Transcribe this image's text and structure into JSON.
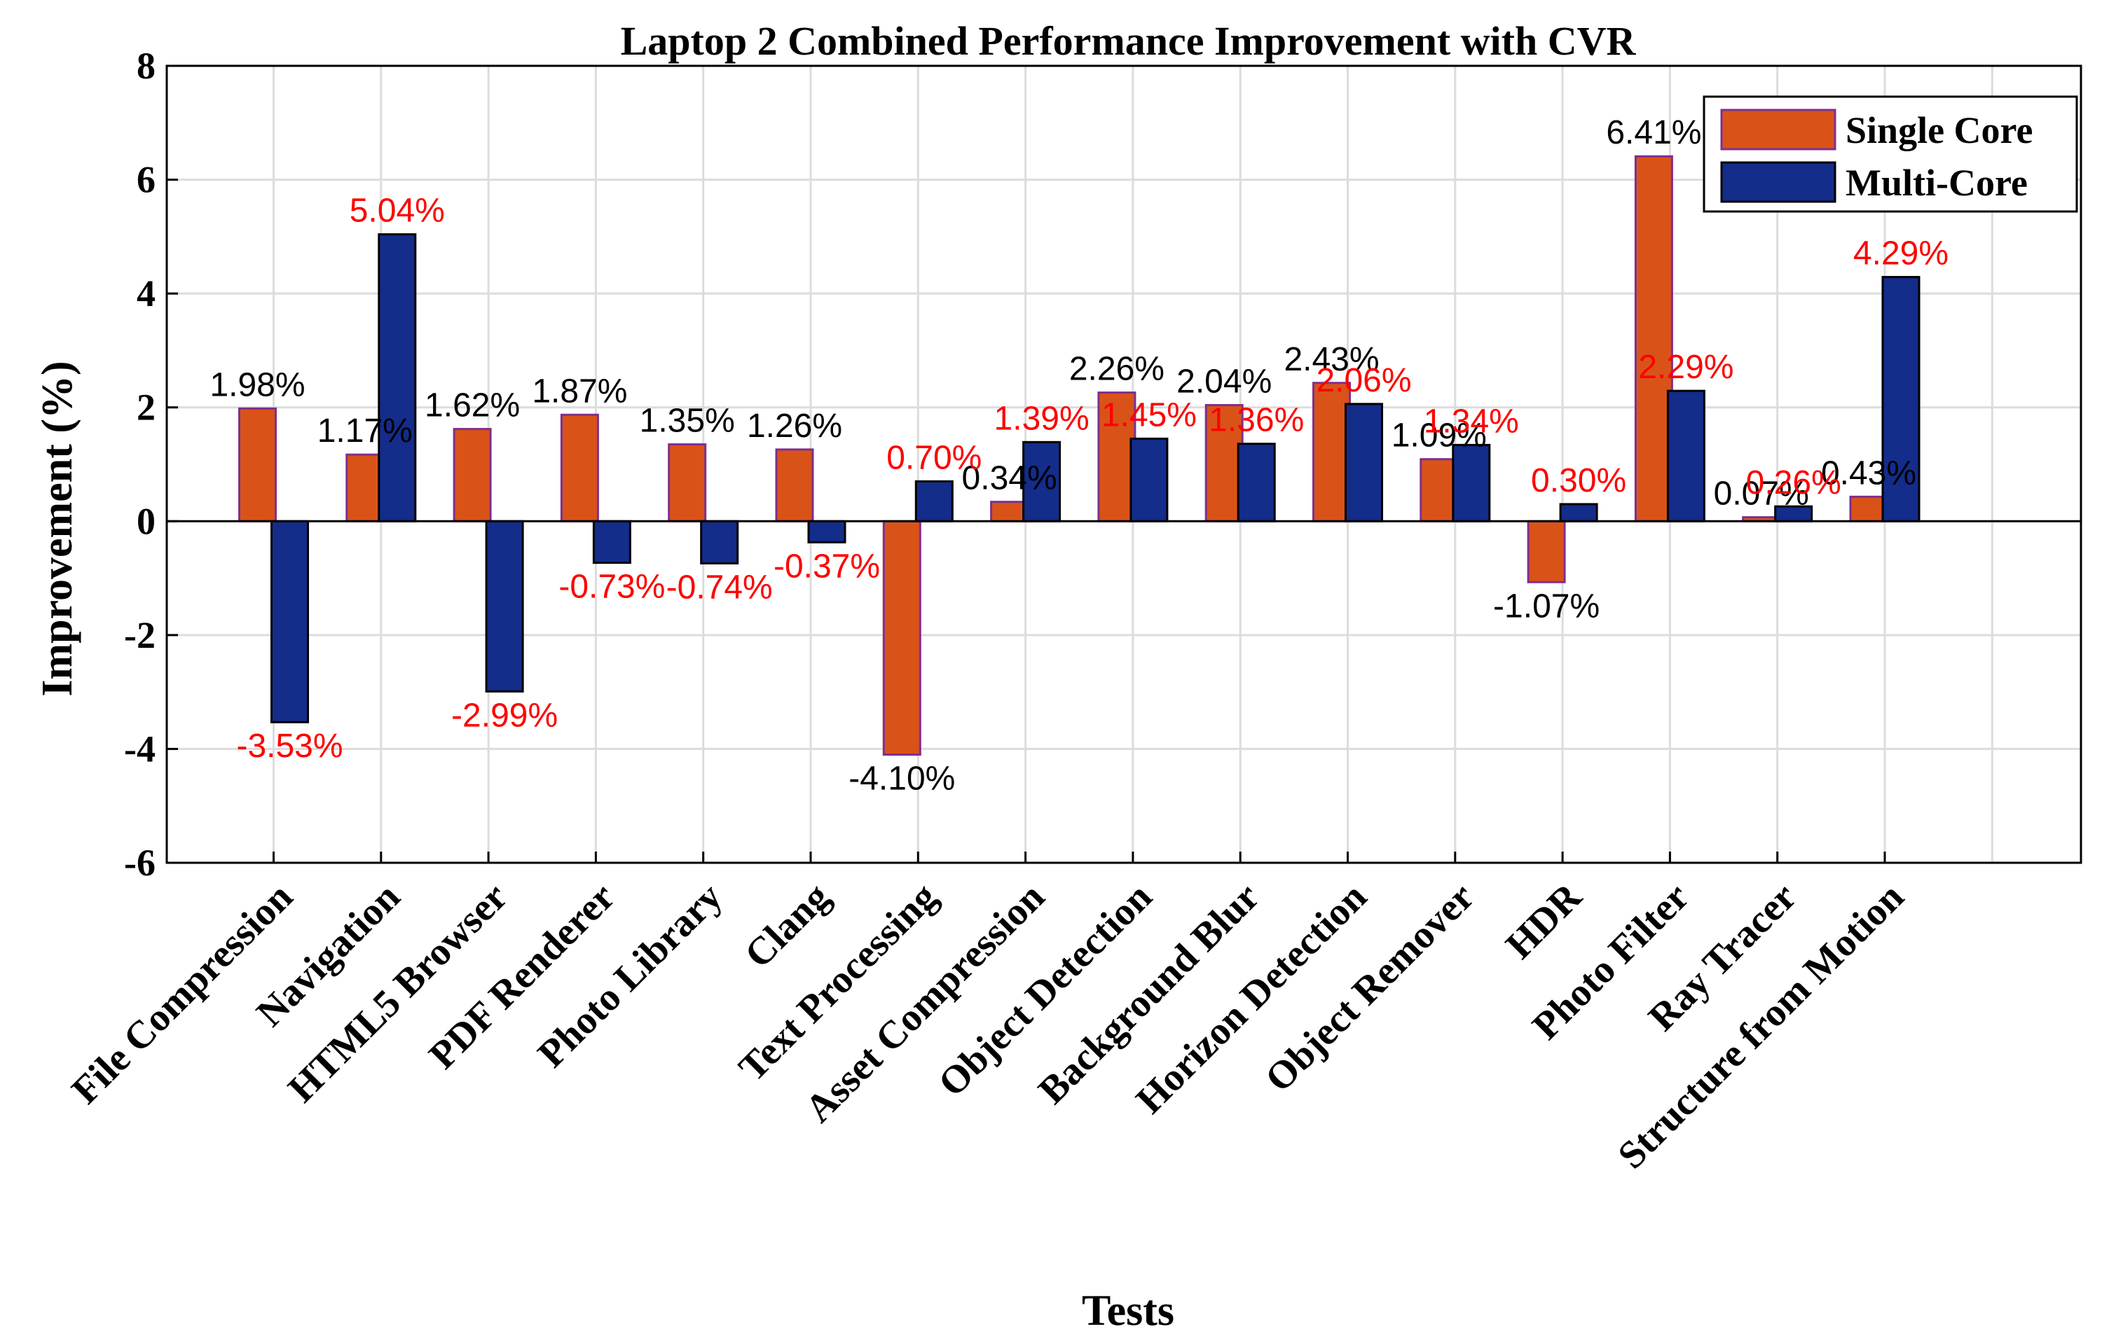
{
  "chart_data": {
    "type": "bar",
    "title": "Laptop 2 Combined Performance Improvement with CVR",
    "xlabel": "Tests",
    "ylabel": "Improvement (%)",
    "ylim": [
      -6,
      8
    ],
    "yticks": [
      "-6",
      "-4",
      "-2",
      "0",
      "2",
      "4",
      "6",
      "8"
    ],
    "grid": true,
    "legend_position": "top-right",
    "categories": [
      "File Compression",
      "Navigation",
      "HTML5 Browser",
      "PDF Renderer",
      "Photo Library",
      "Clang",
      "Text Processing",
      "Asset Compression",
      "Object Detection",
      "Background Blur",
      "Horizon Detection",
      "Object Remover",
      "HDR",
      "Photo Filter",
      "Ray Tracer",
      "Structure from Motion"
    ],
    "series": [
      {
        "name": "Single Core",
        "color": "#d95319",
        "edge_color": "#7e2f8e",
        "values": [
          1.98,
          1.17,
          1.62,
          1.87,
          1.35,
          1.26,
          -4.1,
          0.34,
          2.26,
          2.04,
          2.43,
          1.09,
          -1.07,
          6.41,
          0.07,
          0.43
        ],
        "labels": [
          "1.98%",
          "1.17%",
          "1.62%",
          "1.87%",
          "1.35%",
          "1.26%",
          "-4.10%",
          "0.34%",
          "2.26%",
          "2.04%",
          "2.43%",
          "1.09%",
          "-1.07%",
          "6.41%",
          "0.07%",
          "0.43%"
        ],
        "label_color": "#000000"
      },
      {
        "name": "Multi-Core",
        "color": "#142c8a",
        "edge_color": "#000000",
        "values": [
          -3.53,
          5.04,
          -2.99,
          -0.73,
          -0.74,
          -0.37,
          0.7,
          1.39,
          1.45,
          1.36,
          2.06,
          1.34,
          0.3,
          2.29,
          0.26,
          4.29
        ],
        "labels": [
          "-3.53%",
          "5.04%",
          "-2.99%",
          "-0.73%",
          "-0.74%",
          "-0.37%",
          "0.70%",
          "1.39%",
          "1.45%",
          "1.36%",
          "2.06%",
          "1.34%",
          "0.30%",
          "2.29%",
          "0.26%",
          "4.29%"
        ],
        "label_color": "#ff0000"
      }
    ]
  }
}
